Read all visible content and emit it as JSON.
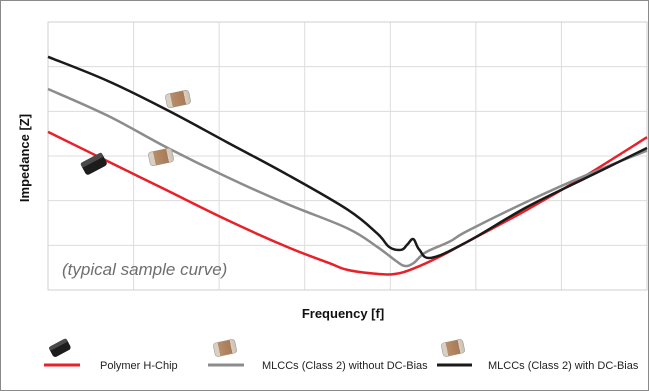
{
  "chart_data": {
    "type": "line",
    "xlabel": "Frequency [f]",
    "ylabel": "Impedance [Z]",
    "annotation": "(typical sample curve)",
    "x_scale": "log",
    "y_scale": "log",
    "grid": true,
    "legend_position": "bottom",
    "xlim": [
      0,
      100
    ],
    "ylim": [
      0,
      100
    ],
    "series": [
      {
        "name": "Polymer H-Chip",
        "color": "#e8202a",
        "icon": "black-chip-icon",
        "x": [
          0,
          10,
          20,
          30,
          40,
          47,
          50,
          55,
          58,
          61,
          65,
          70,
          80,
          90,
          100
        ],
        "y": [
          59,
          48,
          37,
          26,
          16,
          10,
          7.5,
          6,
          6,
          8,
          12,
          18,
          30,
          43,
          57
        ]
      },
      {
        "name": "MLCCs (Class 2) without DC-Bias",
        "color": "#8c8c8c",
        "icon": "mlcc-chip-icon",
        "x": [
          0,
          10,
          20,
          30,
          40,
          50,
          55,
          58,
          59.5,
          61,
          63,
          67,
          70,
          80,
          90,
          100
        ],
        "y": [
          75,
          65,
          53,
          42,
          32,
          23,
          16,
          11,
          9,
          10,
          14,
          18,
          22,
          33,
          43,
          52
        ]
      },
      {
        "name": "MLCCs (Class 2) with DC-Bias",
        "color": "#1a1a1a",
        "icon": "mlcc-chip-icon",
        "x": [
          0,
          10,
          20,
          30,
          40,
          50,
          55,
          57,
          59,
          60,
          61,
          62,
          64,
          70,
          80,
          90,
          100
        ],
        "y": [
          87,
          78,
          67,
          55,
          43,
          30,
          21,
          16,
          15,
          17,
          19,
          15,
          12,
          18,
          31,
          42,
          53
        ]
      }
    ]
  }
}
